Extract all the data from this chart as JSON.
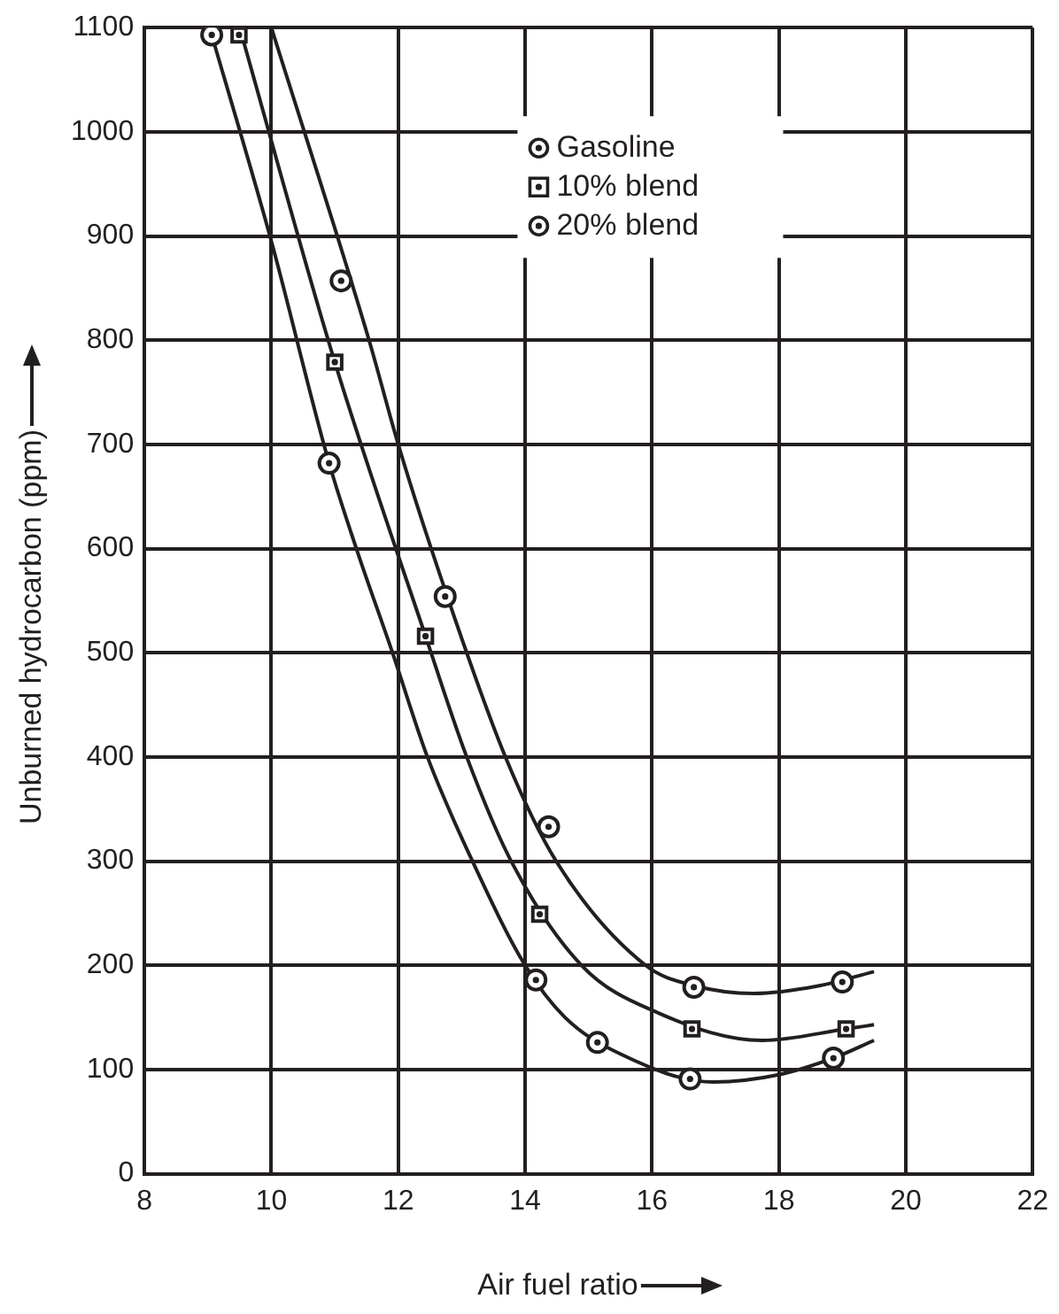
{
  "chart_data": {
    "type": "scatter",
    "xlabel": "Air fuel ratio",
    "ylabel": "Unburned hydrocarbon (ppm)",
    "xlim": [
      8,
      22
    ],
    "ylim": [
      0,
      1100
    ],
    "xticks": [
      8,
      10,
      12,
      14,
      16,
      18,
      20,
      22
    ],
    "yticks": [
      0,
      100,
      200,
      300,
      400,
      500,
      600,
      700,
      800,
      900,
      1000,
      1100
    ],
    "grid": true,
    "legend": "top",
    "series": [
      {
        "name": "Gasoline",
        "marker": "circle",
        "color": "#231f20",
        "x": [
          11.1,
          12.74,
          14.37,
          16.66,
          19.0
        ],
        "values": [
          857,
          554,
          333,
          179,
          184
        ]
      },
      {
        "name": "10% blend",
        "marker": "square",
        "color": "#231f20",
        "x": [
          9.49,
          11.0,
          12.43,
          14.23,
          16.63,
          19.06
        ],
        "values": [
          1093,
          779,
          516,
          249,
          139,
          139
        ]
      },
      {
        "name": "20% blend",
        "marker": "circle",
        "color": "#231f20",
        "x": [
          9.06,
          10.91,
          14.17,
          15.14,
          16.6,
          18.86
        ],
        "values": [
          1093,
          682,
          186,
          126,
          91,
          111
        ]
      },
      {
        "type": "line",
        "marker": "none",
        "line_style": "solid",
        "color": "#231f20",
        "x": [
          10,
          11.54,
          12,
          12.74,
          13.69,
          14.49,
          15.9,
          16.7,
          17.6,
          18.6,
          19.5
        ],
        "values": [
          1100,
          800,
          700,
          560,
          400,
          300,
          200,
          180,
          173,
          180,
          194
        ]
      },
      {
        "type": "line",
        "marker": "none",
        "line_style": "solid",
        "color": "#231f20",
        "x": [
          9.5,
          11.0,
          12.43,
          13.08,
          13.78,
          14.89,
          16.11,
          17.74,
          19.06,
          19.5
        ],
        "values": [
          1100,
          779,
          516,
          400,
          300,
          200,
          154,
          128,
          139,
          143
        ]
      },
      {
        "type": "line",
        "marker": "none",
        "line_style": "solid",
        "color": "#231f20",
        "x": [
          9.06,
          10,
          10.91,
          11.34,
          11.91,
          12.46,
          13.17,
          14.0,
          14.63,
          15.5,
          16.97,
          18.0,
          18.86,
          19.5
        ],
        "values": [
          1093,
          895,
          682,
          600,
          500,
          400,
          300,
          200,
          150,
          115,
          88,
          95,
          111,
          128
        ]
      }
    ]
  }
}
